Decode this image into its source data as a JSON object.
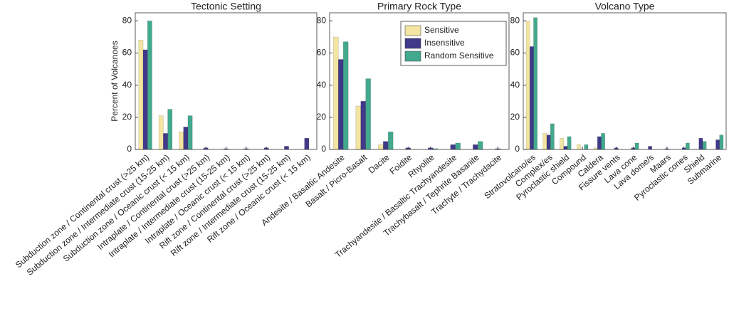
{
  "chart_data": [
    {
      "type": "bar",
      "title": "Tectonic Setting",
      "ylabel": "Percent of Volcanoes",
      "categories": [
        "Subduction zone / Continental crust (>25 km)",
        "Subduction zone / Intermediate crust (15-25 km)",
        "Subduction zone / Oceanic crust (< 15 km)",
        "Intraplate / Continental crust (>25 km)",
        "Intraplate / Intermediate crust (15-25 km)",
        "Intraplate / Oceanic crust (< 15 km)",
        "Rift zone / Continental crust (>25 km)",
        "Rift zone / Intermediate crust (15-25 km)",
        "Rift zone / Oceanic crust (< 15 km)"
      ],
      "series": [
        {
          "color": "#f3e5a1",
          "values": [
            68,
            21,
            11,
            0,
            0,
            0,
            0,
            0,
            0
          ]
        },
        {
          "color": "#40398a",
          "values": [
            62,
            10,
            14,
            1,
            0.5,
            0.5,
            1,
            2,
            7
          ]
        },
        {
          "color": "#43a98e",
          "values": [
            80,
            25,
            21,
            0,
            0,
            0,
            0,
            0,
            0
          ]
        }
      ],
      "ylim": [
        0,
        85
      ],
      "yticks": [
        0,
        20,
        40,
        60,
        80
      ]
    },
    {
      "type": "bar",
      "title": "Primary Rock Type",
      "legend": "upper right",
      "categories": [
        "Andesite / Basaltic Andesite",
        "Basalt / Picro-Basalt",
        "Dacite",
        "Foidite",
        "Rhyolite",
        "Trachyandesite / Basaltic Trachyandesite",
        "Trachybasalt / Tephrite Basanite",
        "Trachyte / Trachydacite"
      ],
      "series": [
        {
          "name": "Sensitive",
          "color": "#f3e5a1",
          "values": [
            70,
            27,
            3,
            0,
            0,
            0,
            0,
            0
          ]
        },
        {
          "name": "Insensitive",
          "color": "#40398a",
          "values": [
            56,
            30,
            5,
            1,
            1,
            3,
            3,
            0.5
          ]
        },
        {
          "name": "Random Sensitive",
          "color": "#43a98e",
          "values": [
            67,
            44,
            11,
            0,
            0.5,
            4,
            5,
            0
          ]
        }
      ],
      "ylim": [
        0,
        85
      ],
      "yticks": [
        0,
        20,
        40,
        60,
        80
      ]
    },
    {
      "type": "bar",
      "title": "Volcano Type",
      "categories": [
        "Stratovolcano/es",
        "Complex/es",
        "Pyroclastic shield",
        "Compound",
        "Caldera",
        "Fissure vents",
        "Lava cone",
        "Lava dome/s",
        "Maars",
        "Pyroclastic cones",
        "Shield",
        "Submarine"
      ],
      "series": [
        {
          "color": "#f3e5a1",
          "values": [
            80,
            10,
            7,
            3,
            1,
            0,
            0,
            0,
            0,
            0,
            0,
            0
          ]
        },
        {
          "color": "#40398a",
          "values": [
            64,
            9,
            2,
            0,
            8,
            1,
            1,
            2,
            0.5,
            1,
            7,
            6
          ]
        },
        {
          "color": "#43a98e",
          "values": [
            82,
            16,
            8,
            3,
            10,
            0,
            4,
            0,
            0,
            4,
            5,
            9
          ]
        }
      ],
      "ylim": [
        0,
        85
      ],
      "yticks": [
        0,
        20,
        40,
        60,
        80
      ]
    }
  ]
}
